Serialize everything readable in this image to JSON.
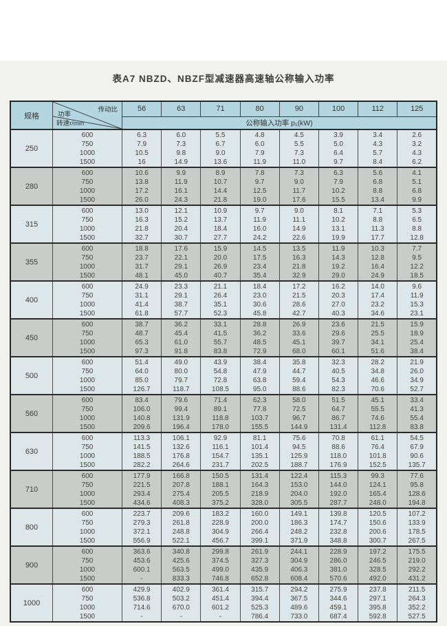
{
  "page": {
    "title": "表A7  NBZD、NBZF型减速器高速轴公称输入功率"
  },
  "table": {
    "corner": {
      "spec_label": "规格",
      "diag_top": "传动比",
      "diag_mid": "功率",
      "diag_bottom": "转速r/min"
    },
    "ratio_columns": [
      "56",
      "63",
      "71",
      "80",
      "90",
      "100",
      "112",
      "125"
    ],
    "subheader": "公称输入功率 p₁(kW)",
    "speeds": [
      "600",
      "750",
      "1000",
      "1500"
    ],
    "groups": [
      {
        "spec": "250",
        "rows": [
          [
            "6.3",
            "6.0",
            "5.5",
            "4.8",
            "4.5",
            "3.9",
            "3.4",
            "2.6"
          ],
          [
            "7.9",
            "7.3",
            "6.7",
            "6.0",
            "5.5",
            "5.0",
            "4.3",
            "3.2"
          ],
          [
            "10.5",
            "9.8",
            "9.0",
            "7.9",
            "7.3",
            "6.4",
            "5.7",
            "4.3"
          ],
          [
            "16",
            "14.9",
            "13.6",
            "11.9",
            "11.0",
            "9.7",
            "8.4",
            "6.2"
          ]
        ]
      },
      {
        "spec": "280",
        "rows": [
          [
            "10.6",
            "9.9",
            "8.9",
            "7.8",
            "7.3",
            "6.3",
            "5.6",
            "4.1"
          ],
          [
            "13.8",
            "11.9",
            "10.7",
            "9.7",
            "9.0",
            "7.9",
            "6.8",
            "5.1"
          ],
          [
            "17.2",
            "16.1",
            "14.4",
            "12.5",
            "11.7",
            "10.2",
            "8.8",
            "6.8"
          ],
          [
            "26.0",
            "24.3",
            "21.8",
            "19.0",
            "17.6",
            "15.5",
            "13.4",
            "9.9"
          ]
        ]
      },
      {
        "spec": "315",
        "rows": [
          [
            "13.0",
            "12.1",
            "10.9",
            "9.7",
            "9.0",
            "8.1",
            "7.1",
            "5.3"
          ],
          [
            "16.3",
            "15.2",
            "13.7",
            "11.9",
            "11.1",
            "10.2",
            "8.8",
            "6.5"
          ],
          [
            "21.8",
            "20.4",
            "18.4",
            "16.0",
            "14.9",
            "13.1",
            "11.3",
            "8.8"
          ],
          [
            "32.7",
            "30.7",
            "27.7",
            "24.2",
            "22.6",
            "19.9",
            "17.7",
            "12.8"
          ]
        ]
      },
      {
        "spec": "355",
        "rows": [
          [
            "18.8",
            "17.6",
            "15.9",
            "14.5",
            "13.5",
            "11.9",
            "10.3",
            "7.7"
          ],
          [
            "23.7",
            "22.1",
            "20.0",
            "17.5",
            "16.3",
            "14.3",
            "12.8",
            "9.5"
          ],
          [
            "31.7",
            "29.1",
            "26.9",
            "23.4",
            "21.8",
            "19.2",
            "16.4",
            "12.2"
          ],
          [
            "48.1",
            "45.0",
            "40.7",
            "35.4",
            "32.9",
            "29.0",
            "24.9",
            "18.5"
          ]
        ]
      },
      {
        "spec": "400",
        "rows": [
          [
            "24.9",
            "23.3",
            "21.1",
            "18.4",
            "17.2",
            "16.2",
            "14.0",
            "9.6"
          ],
          [
            "31.1",
            "29.1",
            "26.4",
            "23.0",
            "21.5",
            "20.3",
            "17.4",
            "11.9"
          ],
          [
            "41.4",
            "38.7",
            "35.1",
            "30.6",
            "28.6",
            "27.0",
            "23.2",
            "15.3"
          ],
          [
            "61.8",
            "57.7",
            "52.3",
            "45.8",
            "42.7",
            "40.3",
            "34.6",
            "23.1"
          ]
        ]
      },
      {
        "spec": "450",
        "rows": [
          [
            "38.7",
            "36.2",
            "33.1",
            "28.8",
            "26.9",
            "23.6",
            "21.5",
            "15.9"
          ],
          [
            "48.7",
            "45.4",
            "41.5",
            "36.2",
            "33.6",
            "29.6",
            "25.5",
            "18.9"
          ],
          [
            "65.3",
            "61.0",
            "55.7",
            "48.5",
            "45.1",
            "39.7",
            "34.1",
            "25.4"
          ],
          [
            "97.3",
            "91.8",
            "83.8",
            "72.9",
            "68.0",
            "60.1",
            "51.6",
            "38.4"
          ]
        ]
      },
      {
        "spec": "500",
        "rows": [
          [
            "51.4",
            "49.0",
            "43.9",
            "38.4",
            "35.8",
            "32.3",
            "28.2",
            "21.9"
          ],
          [
            "64.0",
            "80.0",
            "54.8",
            "47.9",
            "44.7",
            "40.5",
            "34.8",
            "26.0"
          ],
          [
            "85.0",
            "79.7",
            "72.8",
            "63.8",
            "59.4",
            "54.3",
            "46.6",
            "34.9"
          ],
          [
            "126.7",
            "118.7",
            "108.5",
            "95.0",
            "88.6",
            "82.3",
            "70.6",
            "52.7"
          ]
        ]
      },
      {
        "spec": "560",
        "rows": [
          [
            "83.4",
            "79.6",
            "71.4",
            "62.3",
            "58.0",
            "51.5",
            "45.1",
            "33.4"
          ],
          [
            "106.0",
            "99.4",
            "89.1",
            "77.8",
            "72.5",
            "64.7",
            "55.5",
            "41.3"
          ],
          [
            "140.8",
            "131.9",
            "118.8",
            "103.7",
            "96.7",
            "86.7",
            "74.6",
            "55.4"
          ],
          [
            "209.6",
            "196.4",
            "178.0",
            "155.5",
            "144.9",
            "131.4",
            "112.8",
            "83.8"
          ]
        ]
      },
      {
        "spec": "630",
        "rows": [
          [
            "113.3",
            "106.1",
            "92.9",
            "81.1",
            "75.6",
            "70.8",
            "61.1",
            "54.5"
          ],
          [
            "141.5",
            "132.6",
            "116.1",
            "101.4",
            "94.5",
            "88.6",
            "76.4",
            "67.9"
          ],
          [
            "188.5",
            "176.8",
            "154.7",
            "135.1",
            "125.9",
            "118.0",
            "101.8",
            "90.6"
          ],
          [
            "282.2",
            "264.6",
            "231.7",
            "202.5",
            "188.7",
            "176.9",
            "152.5",
            "135.7"
          ]
        ]
      },
      {
        "spec": "710",
        "rows": [
          [
            "177.9",
            "166.8",
            "150.5",
            "131.4",
            "122.4",
            "115.3",
            "99.3",
            "77.6"
          ],
          [
            "221.5",
            "207.8",
            "188.1",
            "164.3",
            "153.0",
            "144.0",
            "124.1",
            "95.8"
          ],
          [
            "293.4",
            "275.4",
            "205.5",
            "218.9",
            "204.0",
            "192.0",
            "165.4",
            "128.6"
          ],
          [
            "434.6",
            "408.3",
            "375.2",
            "328.0",
            "305.5",
            "287.7",
            "248.0",
            "194.8"
          ]
        ]
      },
      {
        "spec": "800",
        "rows": [
          [
            "223.7",
            "209.6",
            "183.2",
            "160.0",
            "149.1",
            "139.8",
            "120.5",
            "107.2"
          ],
          [
            "279.3",
            "261.8",
            "228.9",
            "200.0",
            "186.3",
            "174.7",
            "150.6",
            "133.9"
          ],
          [
            "372.1",
            "248.8",
            "304.9",
            "266.4",
            "248.2",
            "232.8",
            "200.6",
            "178.5"
          ],
          [
            "556.9",
            "522.1",
            "456.7",
            "399.1",
            "371.9",
            "348.8",
            "300.7",
            "267.5"
          ]
        ]
      },
      {
        "spec": "900",
        "rows": [
          [
            "363.6",
            "340.8",
            "299.8",
            "261.9",
            "244.1",
            "228.9",
            "197.2",
            "175.5"
          ],
          [
            "453.6",
            "425.6",
            "374.5",
            "327.3",
            "304.9",
            "286.0",
            "246.5",
            "219.0"
          ],
          [
            "600.1",
            "563.5",
            "499.0",
            "435.9",
            "406.3",
            "381.0",
            "328.5",
            "292.2"
          ],
          [
            "-",
            "833.3",
            "746.8",
            "652.8",
            "608.4",
            "570.6",
            "492.0",
            "431.2"
          ]
        ]
      },
      {
        "spec": "1000",
        "rows": [
          [
            "429.9",
            "402.9",
            "361.4",
            "315.7",
            "294.2",
            "275.9",
            "237.8",
            "211.5"
          ],
          [
            "536.8",
            "503.2",
            "451.4",
            "394.4",
            "367.5",
            "344.6",
            "297.1",
            "264.3"
          ],
          [
            "714.6",
            "670.0",
            "601.2",
            "525.3",
            "489.6",
            "459.1",
            "395.8",
            "352.2"
          ],
          [
            "-",
            "-",
            "-",
            "786.4",
            "733.0",
            "687.4",
            "592.8",
            "527.5"
          ]
        ]
      }
    ]
  }
}
